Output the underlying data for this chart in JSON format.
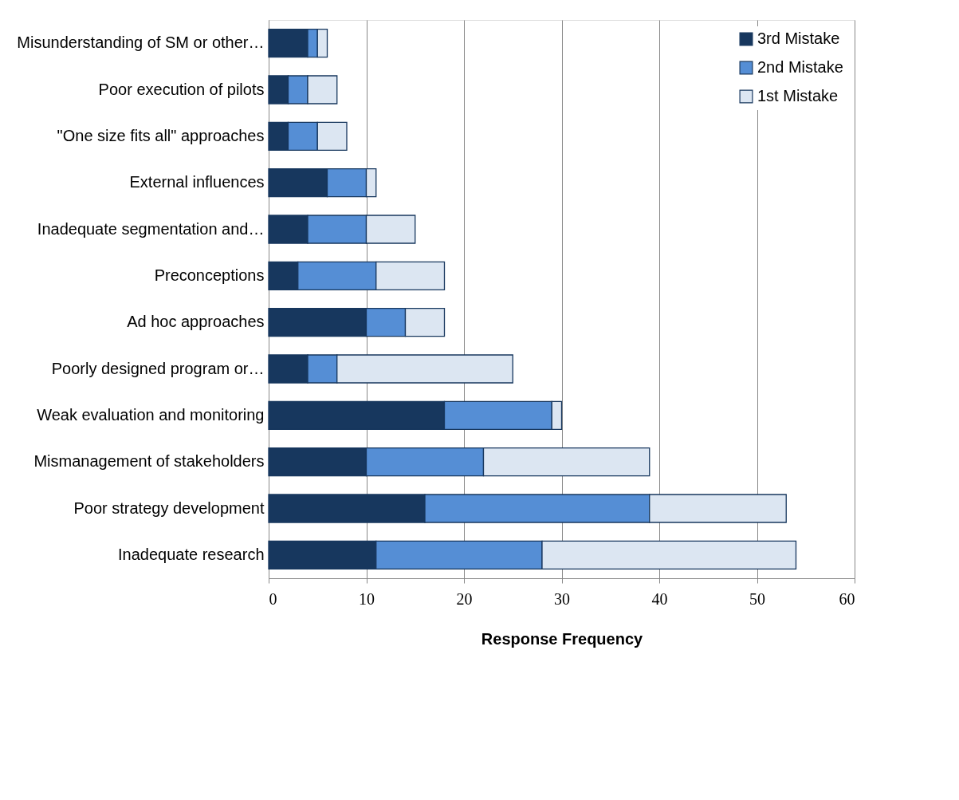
{
  "chart_data": {
    "type": "bar",
    "orientation": "horizontal",
    "stacked": true,
    "xlabel": "Response Frequency",
    "categories": [
      "Misunderstanding of SM or other…",
      "Poor execution of pilots",
      "\"One size fits all\" approaches",
      "External influences",
      "Inadequate segmentation and…",
      "Preconceptions",
      "Ad hoc approaches",
      "Poorly designed program or…",
      "Weak evaluation and monitoring",
      "Mismanagement of stakeholders",
      "Poor strategy development",
      "Inadequate research"
    ],
    "series": [
      {
        "name": "3rd Mistake",
        "color": "#17375e",
        "values": [
          4,
          2,
          2,
          6,
          4,
          3,
          10,
          4,
          18,
          10,
          16,
          11
        ]
      },
      {
        "name": "2nd Mistake",
        "color": "#558ed5",
        "values": [
          1,
          2,
          3,
          4,
          6,
          8,
          4,
          3,
          11,
          12,
          23,
          17
        ]
      },
      {
        "name": "1st Mistake",
        "color": "#dce6f2",
        "values": [
          1,
          3,
          3,
          1,
          5,
          7,
          4,
          18,
          1,
          17,
          14,
          26
        ]
      }
    ],
    "xlim": [
      0,
      60
    ],
    "xticks": [
      0,
      10,
      20,
      30,
      40,
      50,
      60
    ],
    "grid": "x",
    "legend": "top right"
  }
}
